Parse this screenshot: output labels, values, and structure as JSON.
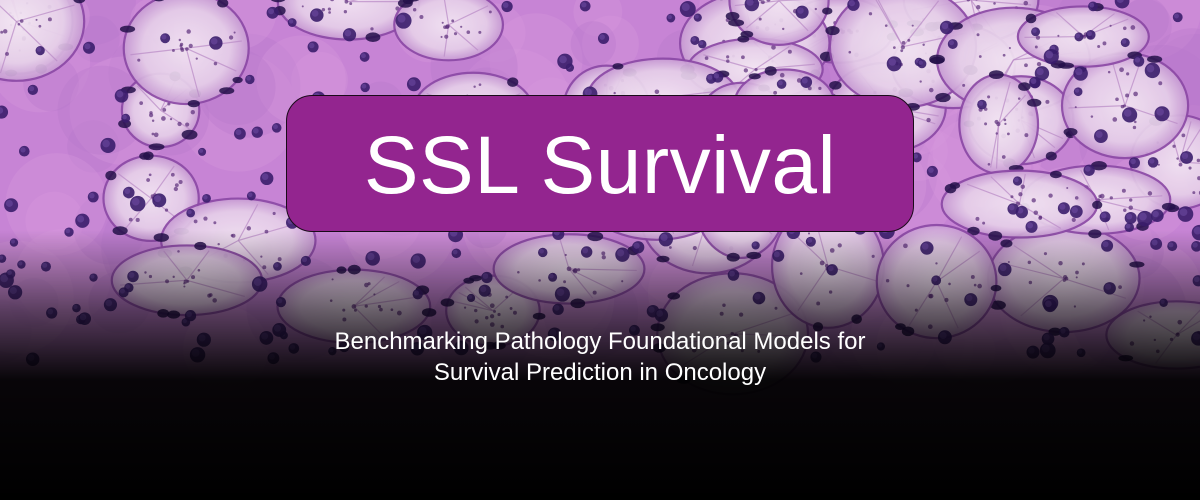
{
  "banner": {
    "background": "hematoxylin-eosin stained histology micrograph fading to black",
    "title": "SSL Survival",
    "subtitle_line1": "Benchmarking Pathology Foundational Models for",
    "subtitle_line2": "Survival Prediction in Oncology"
  },
  "colors": {
    "title_box": "#93258f",
    "title_text": "#ffffff",
    "subtitle_text": "#ffffff",
    "tissue_pink": "#c887d6",
    "nucleus_purple": "#2a1452",
    "bottom_fade": "#000000"
  }
}
